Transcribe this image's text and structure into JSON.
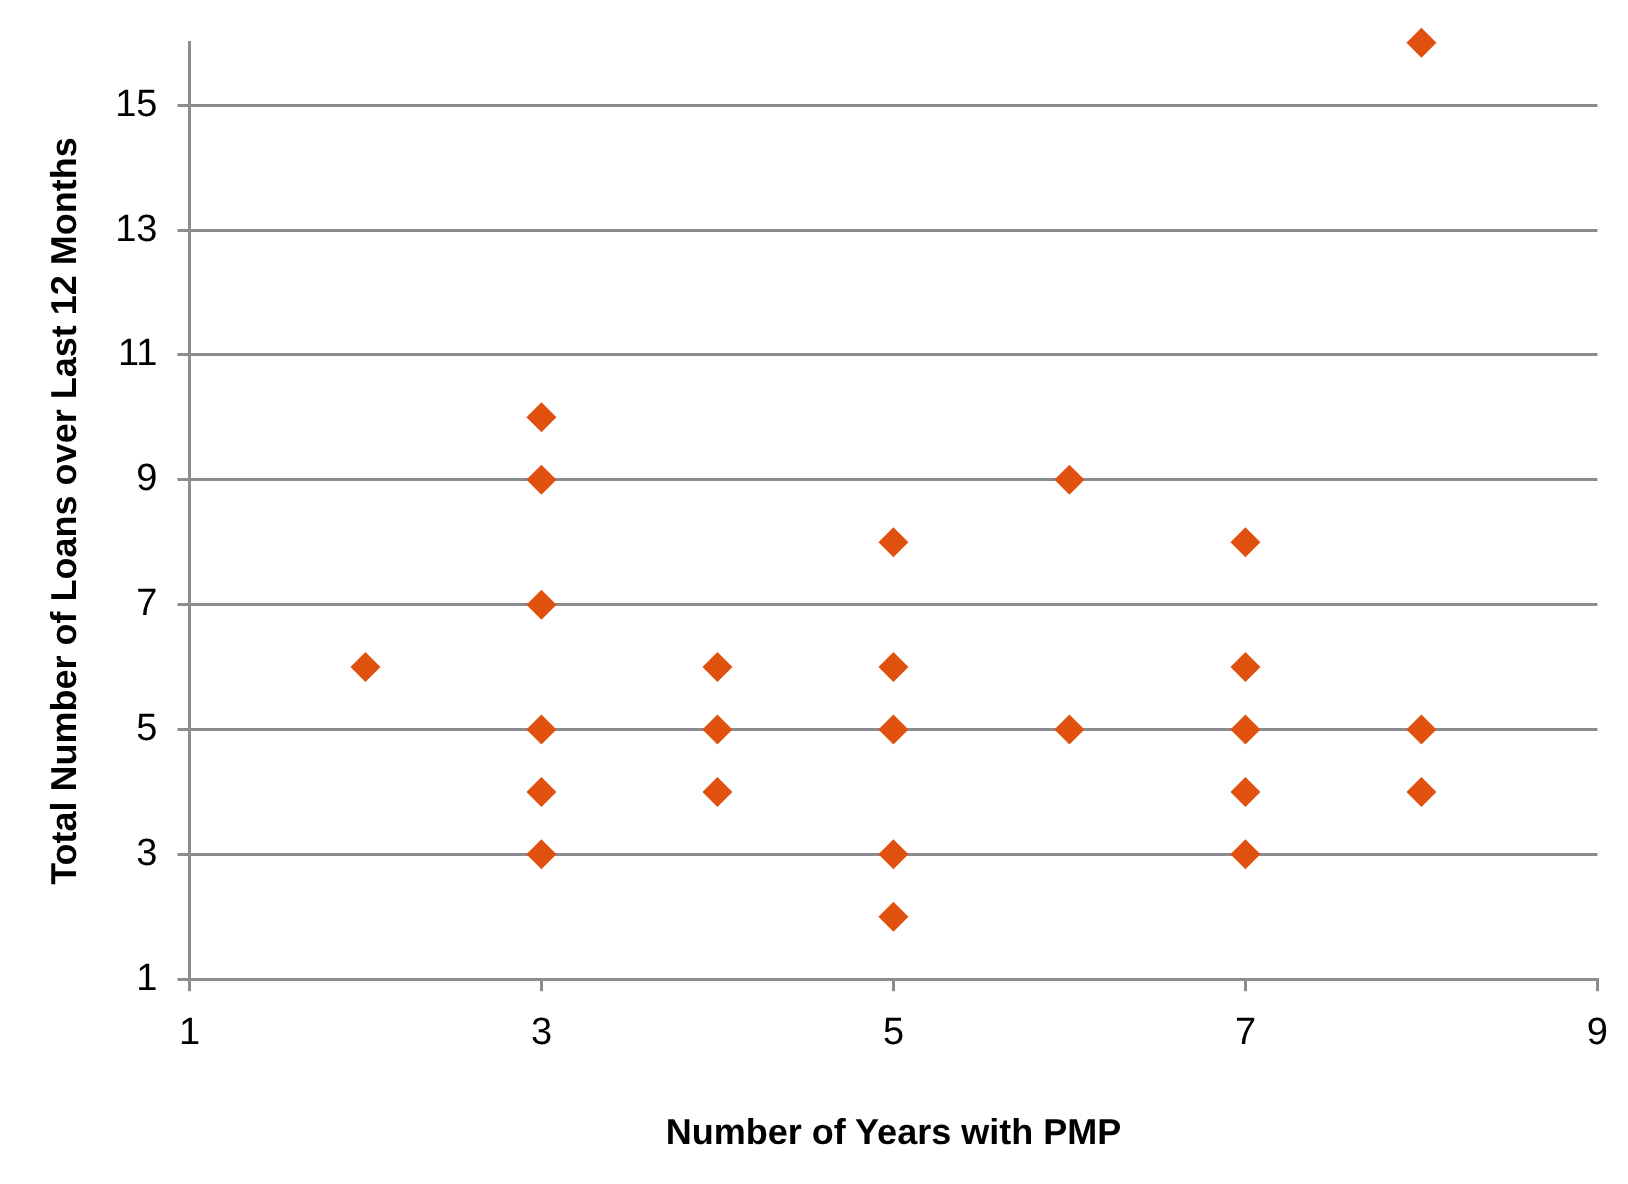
{
  "chart_data": {
    "type": "scatter",
    "xlabel": "Number of Years with PMP",
    "ylabel": "Total Number of Loans over Last 12 Months",
    "x": [
      2,
      3,
      3,
      3,
      3,
      3,
      3,
      4,
      4,
      4,
      5,
      5,
      5,
      5,
      5,
      6,
      6,
      7,
      7,
      7,
      7,
      7,
      8,
      8,
      8
    ],
    "series": [
      {
        "color": "#e0500f",
        "values": [
          6,
          10,
          9,
          7,
          5,
          4,
          3,
          6,
          5,
          4,
          8,
          6,
          5,
          3,
          2,
          9,
          5,
          8,
          6,
          5,
          4,
          3,
          16,
          5,
          4
        ]
      }
    ],
    "xlim": [
      1,
      9
    ],
    "xticks": [
      1,
      3,
      5,
      7,
      9
    ],
    "ylim": [
      1,
      16
    ],
    "yticks": [
      1,
      3,
      5,
      7,
      9,
      11,
      13,
      15
    ],
    "grid": "y",
    "legend": false,
    "marker": "diamond"
  }
}
